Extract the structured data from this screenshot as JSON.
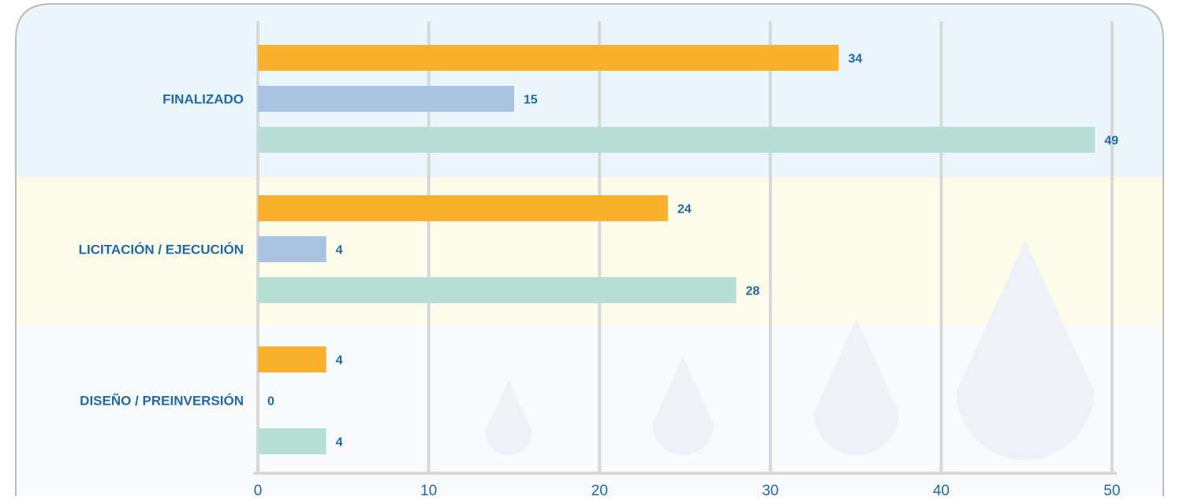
{
  "colors": {
    "band_top": "#eaf6fc",
    "band_mid": "#fdfbea",
    "band_bottom": "#f8fafb",
    "frame": "#b9bcc0",
    "grid": "#d8d8d8",
    "text": "#1f6aa5",
    "drops": "#eef2f6"
  },
  "chart_data": {
    "type": "bar",
    "orientation": "horizontal",
    "categories": [
      "FINALIZADO",
      "LICITACIÓN / EJECUCIÓN",
      "DISEÑO / PREINVERSIÓN"
    ],
    "series": [
      {
        "color": "#fbb02e",
        "values": [
          34,
          24,
          4
        ]
      },
      {
        "color": "#a9c3e3",
        "values": [
          15,
          4,
          0
        ]
      },
      {
        "color": "#b7dfd5",
        "values": [
          49,
          28,
          4
        ]
      }
    ],
    "data_labels": [
      [
        "34",
        "15",
        "49"
      ],
      [
        "24",
        "4",
        "28"
      ],
      [
        "4",
        "0",
        "4"
      ]
    ],
    "xlim": [
      0,
      50
    ],
    "xticks": [
      "0",
      "10",
      "20",
      "30",
      "40",
      "50"
    ],
    "grid": "vertical",
    "legend": "none",
    "title": "",
    "xlabel": "",
    "ylabel": ""
  }
}
